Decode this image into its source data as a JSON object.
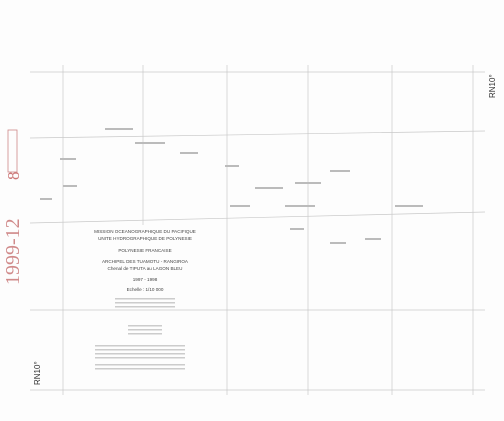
{
  "sheet_code": "1999-12",
  "sheet_number": "8",
  "edge_labels": {
    "top_right": "RN10°",
    "bottom_left": "RN10°"
  },
  "title_block": {
    "organisation": [
      "MISSION OCEANOGRAPHIQUE DU PACIFIQUE",
      "UNITE HYDROGRAPHIQUE DE POLYNESIE"
    ],
    "region": "POLYNESIE FRANCAISE",
    "place": [
      "ARCHIPEL DES TUAMOTU - RANGIROA",
      "Chenal de TIPUTA au LAGON BLEU"
    ],
    "years": "1997 - 1998",
    "scale": "Echelle : 1/10 000"
  }
}
